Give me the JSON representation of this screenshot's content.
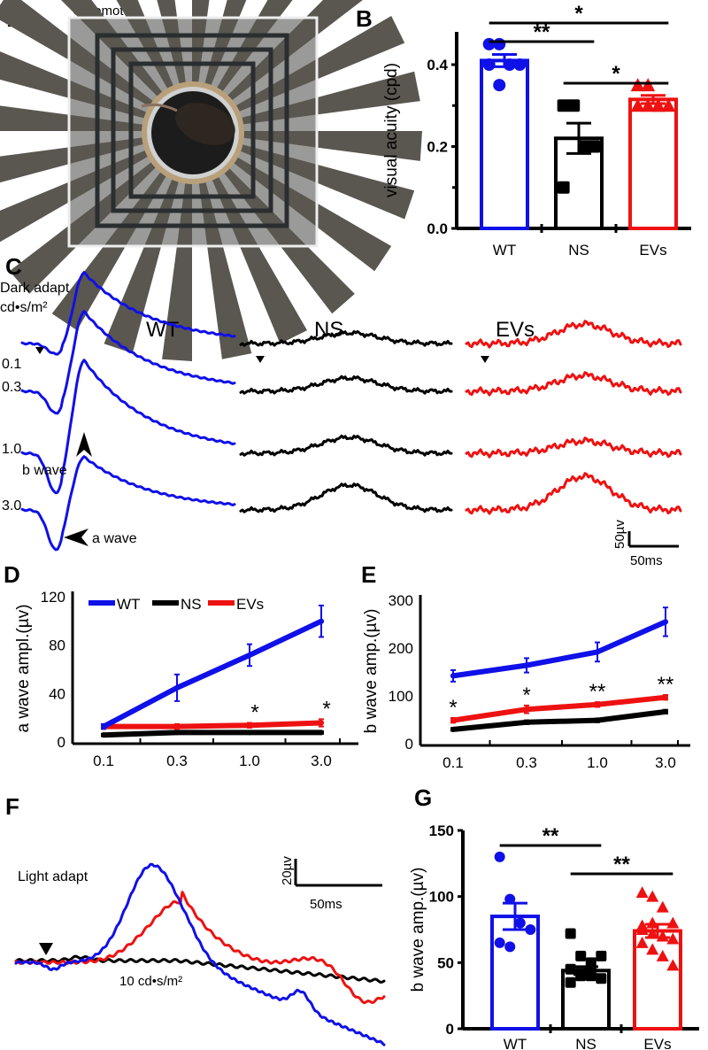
{
  "panels": {
    "A": {
      "label": "A",
      "title": "Optomotor"
    },
    "B": {
      "label": "B"
    },
    "C": {
      "label": "C",
      "condition": "Dark adapt",
      "unit": "cd•s/m²",
      "groups": [
        "WT",
        "NS",
        "EVs"
      ],
      "intensities": [
        "0.1",
        "0.3",
        "1.0",
        "3.0"
      ],
      "b_wave_label": "b wave",
      "a_wave_label": "a wave",
      "scale_v": "50µv",
      "scale_t": "50ms"
    },
    "D": {
      "label": "D"
    },
    "E": {
      "label": "E"
    },
    "F": {
      "label": "F",
      "condition": "Light adapt",
      "intensity": "10 cd•s/m²",
      "scale_v": "20µv",
      "scale_t": "50ms"
    },
    "G": {
      "label": "G"
    }
  },
  "colors": {
    "WT": "#1010e8",
    "NS": "#000000",
    "EVs": "#ee1111"
  },
  "chart_data": [
    {
      "id": "B",
      "type": "bar",
      "ylabel": "visual acuity (cpd)",
      "ylim": [
        0,
        0.48
      ],
      "yticks": [
        "0.0",
        "0.2",
        "0.4"
      ],
      "categories": [
        "WT",
        "NS",
        "EVs"
      ],
      "means": [
        0.41,
        0.22,
        0.315
      ],
      "sem": [
        0.015,
        0.037,
        0.01
      ],
      "points": [
        [
          0.45,
          0.45,
          0.4,
          0.4,
          0.4,
          0.35
        ],
        [
          0.3,
          0.3,
          0.2,
          0.2,
          0.1
        ],
        [
          0.35,
          0.35,
          0.3,
          0.3,
          0.3,
          0.3,
          0.3
        ]
      ],
      "significance": [
        {
          "from": "WT",
          "to": "EVs",
          "label": "*"
        },
        {
          "from": "WT",
          "to": "NS",
          "label": "**"
        },
        {
          "from": "NS",
          "to": "EVs",
          "label": "*"
        }
      ]
    },
    {
      "id": "D",
      "type": "line",
      "ylabel": "a wave ampl.(µv)",
      "ylim": [
        0,
        120
      ],
      "yticks": [
        "0",
        "40",
        "80",
        "120"
      ],
      "x": [
        "0.1",
        "0.3",
        "1.0",
        "3.0"
      ],
      "legend": "top-left",
      "series": [
        {
          "name": "WT",
          "values": [
            12,
            44,
            71,
            99
          ],
          "err": [
            2,
            11,
            9,
            13
          ]
        },
        {
          "name": "NS",
          "values": [
            5,
            7,
            7,
            7
          ],
          "err": [
            1,
            1,
            1,
            1
          ]
        },
        {
          "name": "EVs",
          "values": [
            12,
            12,
            13,
            15
          ],
          "err": [
            2,
            2,
            2,
            3
          ]
        }
      ],
      "annotations": [
        "",
        "",
        "*",
        "*"
      ]
    },
    {
      "id": "E",
      "type": "line",
      "ylabel": "b wave amp.(µv)",
      "ylim": [
        0,
        300
      ],
      "yticks": [
        "0",
        "100",
        "200",
        "300"
      ],
      "x": [
        "0.1",
        "0.3",
        "1.0",
        "3.0"
      ],
      "series": [
        {
          "name": "WT",
          "values": [
            140,
            162,
            190,
            253
          ],
          "err": [
            12,
            15,
            20,
            30
          ]
        },
        {
          "name": "NS",
          "values": [
            28,
            43,
            47,
            65
          ],
          "err": [
            3,
            4,
            4,
            4
          ]
        },
        {
          "name": "EVs",
          "values": [
            47,
            70,
            80,
            95
          ],
          "err": [
            5,
            8,
            5,
            5
          ]
        }
      ],
      "annotations": [
        "*",
        "*",
        "**",
        "**"
      ]
    },
    {
      "id": "G",
      "type": "bar",
      "ylabel": "b wave amp.(µv)",
      "ylim": [
        0,
        150
      ],
      "yticks": [
        "0",
        "50",
        "100",
        "150"
      ],
      "categories": [
        "WT",
        "NS",
        "EVs"
      ],
      "means": [
        85,
        44,
        74
      ],
      "sem": [
        10,
        3,
        5
      ],
      "points": [
        [
          130,
          98,
          80,
          75,
          65,
          62
        ],
        [
          72,
          55,
          50,
          55,
          45,
          42,
          40,
          38,
          35,
          40,
          45
        ],
        [
          103,
          100,
          92,
          80,
          75,
          80,
          70,
          68,
          65,
          60,
          55,
          48,
          78,
          72
        ]
      ],
      "significance": [
        {
          "from": "WT",
          "to": "NS",
          "label": "**"
        },
        {
          "from": "NS",
          "to": "EVs",
          "label": "**"
        }
      ]
    }
  ]
}
